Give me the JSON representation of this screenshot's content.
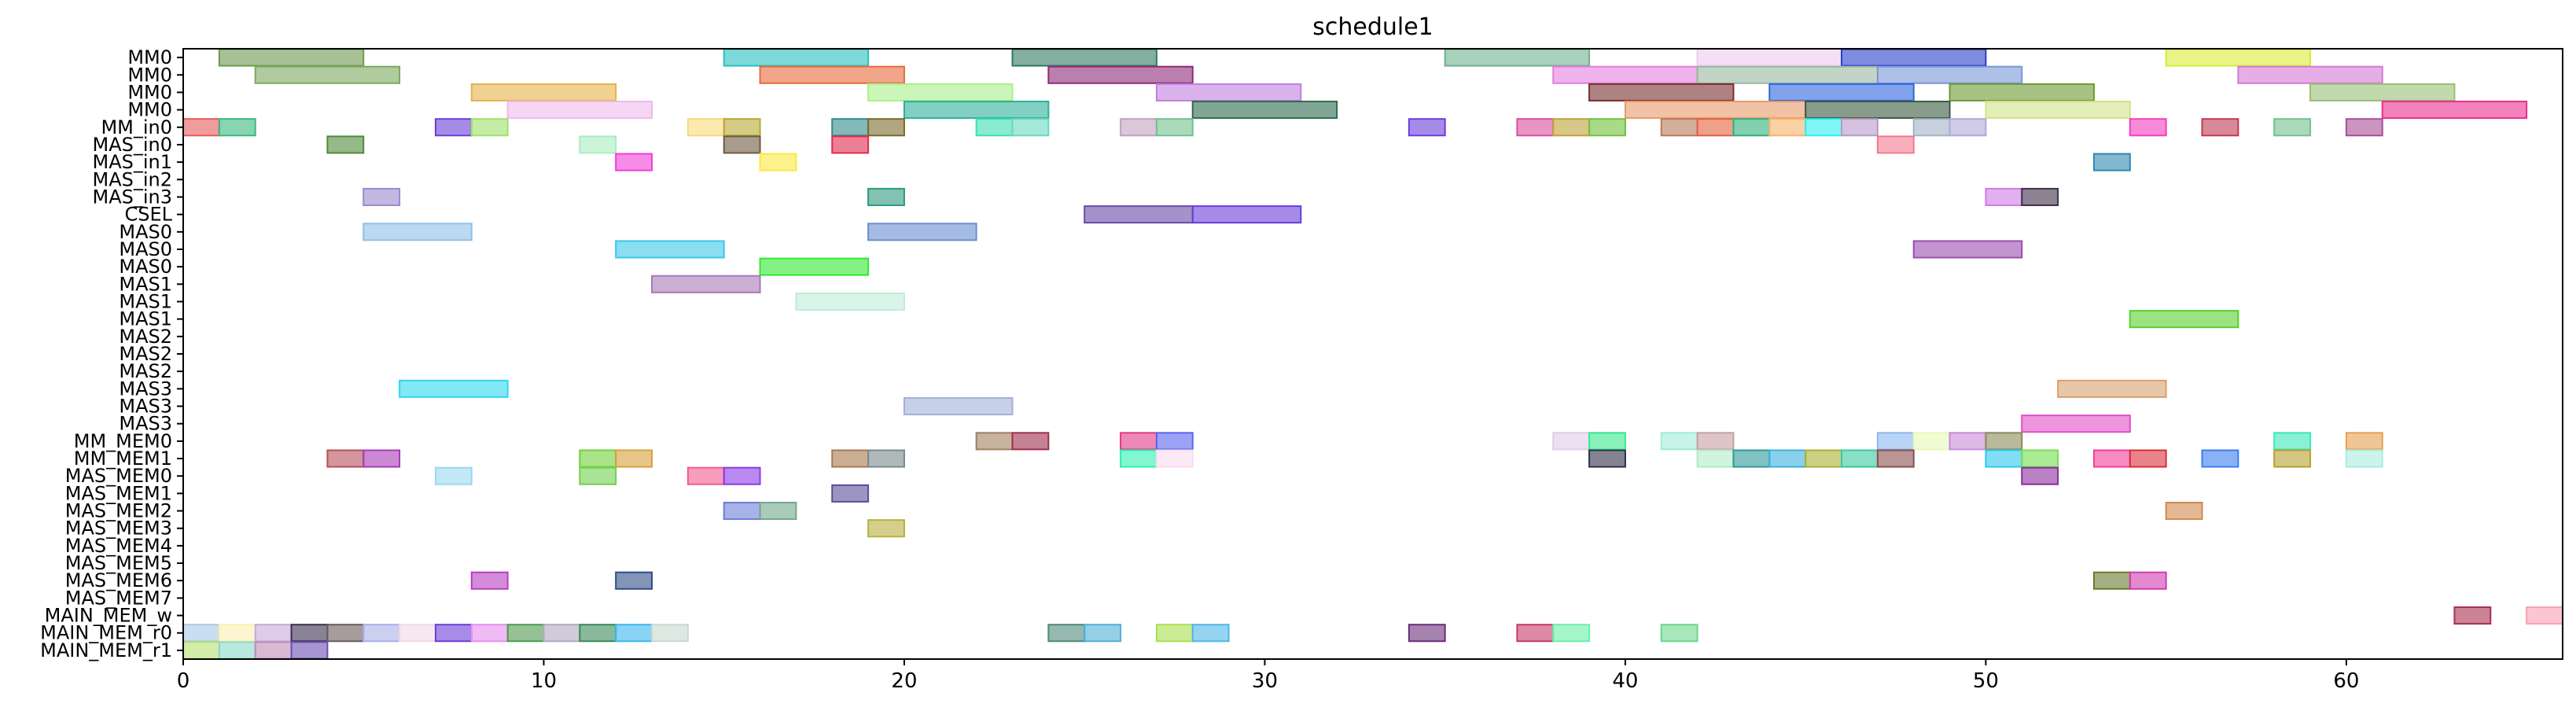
{
  "chart_data": {
    "type": "gantt",
    "title": "schedule1",
    "xlabel": "",
    "ylabel": "",
    "xlim": [
      0,
      66
    ],
    "x_ticks": [
      0,
      10,
      20,
      30,
      40,
      50,
      60
    ],
    "x_tick_labels": [
      "0",
      "10",
      "20",
      "30",
      "40",
      "50",
      "60"
    ],
    "grid": false,
    "legend": "none",
    "rows": [
      "MM0",
      "MM0",
      "MM0",
      "MM0",
      "MM_in0",
      "MAS_in0",
      "MAS_in1",
      "MAS_in2",
      "MAS_in3",
      "CSEL",
      "MAS0",
      "MAS0",
      "MAS0",
      "MAS1",
      "MAS1",
      "MAS1",
      "MAS2",
      "MAS2",
      "MAS2",
      "MAS3",
      "MAS3",
      "MAS3",
      "MM_MEM0",
      "MM_MEM1",
      "MAS_MEM0",
      "MAS_MEM1",
      "MAS_MEM2",
      "MAS_MEM3",
      "MAS_MEM4",
      "MAS_MEM5",
      "MAS_MEM6",
      "MAS_MEM7",
      "MAIN_MEM_w",
      "MAIN_MEM_r0",
      "MAIN_MEM_r1"
    ],
    "tasks": [
      {
        "row": 0,
        "start": 1,
        "end": 5,
        "color": "#6b9a4e"
      },
      {
        "row": 0,
        "start": 15,
        "end": 19,
        "color": "#27c0c0"
      },
      {
        "row": 0,
        "start": 23,
        "end": 27,
        "color": "#2f7a60"
      },
      {
        "row": 0,
        "start": 35,
        "end": 39,
        "color": "#6fb08e"
      },
      {
        "row": 0,
        "start": 42,
        "end": 46,
        "color": "#eec9f0"
      },
      {
        "row": 0,
        "start": 46,
        "end": 50,
        "color": "#2a3ec8"
      },
      {
        "row": 0,
        "start": 55,
        "end": 59,
        "color": "#d8ec36"
      },
      {
        "row": 1,
        "start": 2,
        "end": 6,
        "color": "#7ba85e"
      },
      {
        "row": 1,
        "start": 16,
        "end": 20,
        "color": "#e86a3e"
      },
      {
        "row": 1,
        "start": 24,
        "end": 28,
        "color": "#8e2a78"
      },
      {
        "row": 1,
        "start": 38,
        "end": 42,
        "color": "#e27ee0"
      },
      {
        "row": 1,
        "start": 42,
        "end": 47,
        "color": "#9ab8a0"
      },
      {
        "row": 1,
        "start": 47,
        "end": 51,
        "color": "#7a96d8"
      },
      {
        "row": 1,
        "start": 57,
        "end": 61,
        "color": "#d47ad4"
      },
      {
        "row": 2,
        "start": 8,
        "end": 12,
        "color": "#e6b24a"
      },
      {
        "row": 2,
        "start": 19,
        "end": 23,
        "color": "#aaf08a"
      },
      {
        "row": 2,
        "start": 27,
        "end": 31,
        "color": "#c27ee0"
      },
      {
        "row": 2,
        "start": 39,
        "end": 43,
        "color": "#7a2e2e"
      },
      {
        "row": 2,
        "start": 44,
        "end": 48,
        "color": "#2e66e0"
      },
      {
        "row": 2,
        "start": 49,
        "end": 53,
        "color": "#6e9a34"
      },
      {
        "row": 2,
        "start": 59,
        "end": 63,
        "color": "#98c074"
      },
      {
        "row": 3,
        "start": 9,
        "end": 13,
        "color": "#eebaee"
      },
      {
        "row": 3,
        "start": 20,
        "end": 24,
        "color": "#2eb09a"
      },
      {
        "row": 3,
        "start": 28,
        "end": 32,
        "color": "#2e6a50"
      },
      {
        "row": 3,
        "start": 40,
        "end": 45,
        "color": "#e89a6a"
      },
      {
        "row": 3,
        "start": 45,
        "end": 49,
        "color": "#3a5a3e"
      },
      {
        "row": 3,
        "start": 50,
        "end": 54,
        "color": "#d2e28a"
      },
      {
        "row": 3,
        "start": 61,
        "end": 65,
        "color": "#ea2e8e"
      },
      {
        "row": 4,
        "start": 0,
        "end": 1,
        "color": "#e85a5a"
      },
      {
        "row": 4,
        "start": 1,
        "end": 2,
        "color": "#3ab87e"
      },
      {
        "row": 4,
        "start": 7,
        "end": 8,
        "color": "#6a3ed8"
      },
      {
        "row": 4,
        "start": 8,
        "end": 9,
        "color": "#9ee068"
      },
      {
        "row": 4,
        "start": 14,
        "end": 15,
        "color": "#f8da7a"
      },
      {
        "row": 4,
        "start": 15,
        "end": 16,
        "color": "#b8a832"
      },
      {
        "row": 4,
        "start": 18,
        "end": 19,
        "color": "#2e8a8a"
      },
      {
        "row": 4,
        "start": 19,
        "end": 20,
        "color": "#7a6a2e"
      },
      {
        "row": 4,
        "start": 22,
        "end": 23,
        "color": "#3ae0b0"
      },
      {
        "row": 4,
        "start": 23,
        "end": 24,
        "color": "#6ad8c0"
      },
      {
        "row": 4,
        "start": 26,
        "end": 27,
        "color": "#c2a2c2"
      },
      {
        "row": 4,
        "start": 27,
        "end": 28,
        "color": "#72c08e"
      },
      {
        "row": 4,
        "start": 34,
        "end": 35,
        "color": "#6a3ed8"
      },
      {
        "row": 4,
        "start": 37,
        "end": 38,
        "color": "#d84ea0"
      },
      {
        "row": 4,
        "start": 38,
        "end": 39,
        "color": "#c0a23a"
      },
      {
        "row": 4,
        "start": 39,
        "end": 40,
        "color": "#72c03a"
      },
      {
        "row": 4,
        "start": 41,
        "end": 42,
        "color": "#b87a5a"
      },
      {
        "row": 4,
        "start": 42,
        "end": 43,
        "color": "#e2603e"
      },
      {
        "row": 4,
        "start": 43,
        "end": 44,
        "color": "#2eb07a"
      },
      {
        "row": 4,
        "start": 44,
        "end": 45,
        "color": "#f8b46a"
      },
      {
        "row": 4,
        "start": 45,
        "end": 46,
        "color": "#2ef0f0"
      },
      {
        "row": 4,
        "start": 46,
        "end": 47,
        "color": "#b89ac8"
      },
      {
        "row": 4,
        "start": 48,
        "end": 49,
        "color": "#a2b2c8"
      },
      {
        "row": 4,
        "start": 49,
        "end": 50,
        "color": "#b0a8d8"
      },
      {
        "row": 4,
        "start": 54,
        "end": 55,
        "color": "#f23ec0"
      },
      {
        "row": 4,
        "start": 56,
        "end": 57,
        "color": "#c03a52"
      },
      {
        "row": 4,
        "start": 58,
        "end": 59,
        "color": "#72c08e"
      },
      {
        "row": 4,
        "start": 60,
        "end": 61,
        "color": "#a84e9a"
      },
      {
        "row": 5,
        "start": 4,
        "end": 5,
        "color": "#4e8a3a"
      },
      {
        "row": 5,
        "start": 11,
        "end": 12,
        "color": "#a8ecc0"
      },
      {
        "row": 5,
        "start": 15,
        "end": 16,
        "color": "#6e5a40"
      },
      {
        "row": 5,
        "start": 18,
        "end": 19,
        "color": "#e02a4e"
      },
      {
        "row": 5,
        "start": 47,
        "end": 48,
        "color": "#f27a8e"
      },
      {
        "row": 6,
        "start": 12,
        "end": 13,
        "color": "#f23ed8"
      },
      {
        "row": 6,
        "start": 16,
        "end": 17,
        "color": "#fae840"
      },
      {
        "row": 6,
        "start": 53,
        "end": 54,
        "color": "#2e8ab0"
      },
      {
        "row": 8,
        "start": 5,
        "end": 6,
        "color": "#9a8ad0"
      },
      {
        "row": 8,
        "start": 19,
        "end": 20,
        "color": "#2e9a7e"
      },
      {
        "row": 8,
        "start": 50,
        "end": 51,
        "color": "#d27ae8"
      },
      {
        "row": 8,
        "start": 51,
        "end": 52,
        "color": "#40304a"
      },
      {
        "row": 9,
        "start": 25,
        "end": 28,
        "color": "#6a4aa8"
      },
      {
        "row": 9,
        "start": 28,
        "end": 31,
        "color": "#6a3ed8"
      },
      {
        "row": 10,
        "start": 5,
        "end": 8,
        "color": "#8ec0e8"
      },
      {
        "row": 10,
        "start": 19,
        "end": 22,
        "color": "#6a8ed0"
      },
      {
        "row": 11,
        "start": 12,
        "end": 15,
        "color": "#3ac8e8"
      },
      {
        "row": 11,
        "start": 48,
        "end": 51,
        "color": "#9a4eb0"
      },
      {
        "row": 12,
        "start": 16,
        "end": 19,
        "color": "#30ea30"
      },
      {
        "row": 13,
        "start": 13,
        "end": 16,
        "color": "#a87ab8"
      },
      {
        "row": 14,
        "start": 17,
        "end": 20,
        "color": "#c0ecd8"
      },
      {
        "row": 15,
        "start": 54,
        "end": 57,
        "color": "#58d02e"
      },
      {
        "row": 19,
        "start": 6,
        "end": 9,
        "color": "#2ed8f0"
      },
      {
        "row": 19,
        "start": 52,
        "end": 55,
        "color": "#d8a070"
      },
      {
        "row": 20,
        "start": 20,
        "end": 23,
        "color": "#a2b0d8"
      },
      {
        "row": 21,
        "start": 51,
        "end": 54,
        "color": "#e24ec8"
      },
      {
        "row": 22,
        "start": 22,
        "end": 23,
        "color": "#a08060"
      },
      {
        "row": 22,
        "start": 23,
        "end": 24,
        "color": "#a02e4e"
      },
      {
        "row": 22,
        "start": 26,
        "end": 27,
        "color": "#e03a8a"
      },
      {
        "row": 22,
        "start": 27,
        "end": 28,
        "color": "#5a66f0"
      },
      {
        "row": 22,
        "start": 38,
        "end": 39,
        "color": "#e0cce8"
      },
      {
        "row": 22,
        "start": 39,
        "end": 40,
        "color": "#3ae88e"
      },
      {
        "row": 22,
        "start": 41,
        "end": 42,
        "color": "#a0ecd8"
      },
      {
        "row": 22,
        "start": 42,
        "end": 43,
        "color": "#c8a0a0"
      },
      {
        "row": 22,
        "start": 47,
        "end": 48,
        "color": "#8ab8f0"
      },
      {
        "row": 22,
        "start": 48,
        "end": 49,
        "color": "#e8f8b8"
      },
      {
        "row": 22,
        "start": 49,
        "end": 50,
        "color": "#c88ad8"
      },
      {
        "row": 22,
        "start": 50,
        "end": 51,
        "color": "#8a8a5a"
      },
      {
        "row": 22,
        "start": 58,
        "end": 59,
        "color": "#3ae8b8"
      },
      {
        "row": 22,
        "start": 60,
        "end": 61,
        "color": "#e8a04e"
      },
      {
        "row": 23,
        "start": 4,
        "end": 5,
        "color": "#b84e5a"
      },
      {
        "row": 23,
        "start": 5,
        "end": 6,
        "color": "#a83ab8"
      },
      {
        "row": 23,
        "start": 11,
        "end": 12,
        "color": "#72d03a"
      },
      {
        "row": 23,
        "start": 12,
        "end": 13,
        "color": "#d8a03a"
      },
      {
        "row": 23,
        "start": 18,
        "end": 19,
        "color": "#a87a4e"
      },
      {
        "row": 23,
        "start": 19,
        "end": 20,
        "color": "#7a8a8a"
      },
      {
        "row": 23,
        "start": 26,
        "end": 27,
        "color": "#2ef0b0"
      },
      {
        "row": 23,
        "start": 27,
        "end": 28,
        "color": "#f8dcf0"
      },
      {
        "row": 23,
        "start": 39,
        "end": 40,
        "color": "#30304a"
      },
      {
        "row": 23,
        "start": 42,
        "end": 43,
        "color": "#b0ecc8"
      },
      {
        "row": 23,
        "start": 43,
        "end": 44,
        "color": "#2e9a9a"
      },
      {
        "row": 23,
        "start": 44,
        "end": 45,
        "color": "#3ab0e0"
      },
      {
        "row": 23,
        "start": 45,
        "end": 46,
        "color": "#a8b030"
      },
      {
        "row": 23,
        "start": 46,
        "end": 47,
        "color": "#3ac8a0"
      },
      {
        "row": 23,
        "start": 47,
        "end": 48,
        "color": "#8a4e4e"
      },
      {
        "row": 23,
        "start": 50,
        "end": 51,
        "color": "#2ec8f0"
      },
      {
        "row": 23,
        "start": 51,
        "end": 52,
        "color": "#72e04e"
      },
      {
        "row": 23,
        "start": 53,
        "end": 54,
        "color": "#f23e9a"
      },
      {
        "row": 23,
        "start": 54,
        "end": 55,
        "color": "#d8303a"
      },
      {
        "row": 23,
        "start": 56,
        "end": 57,
        "color": "#3a7ef0"
      },
      {
        "row": 23,
        "start": 58,
        "end": 59,
        "color": "#b8a030"
      },
      {
        "row": 23,
        "start": 60,
        "end": 61,
        "color": "#a8ece0"
      },
      {
        "row": 24,
        "start": 7,
        "end": 8,
        "color": "#9ad8f0"
      },
      {
        "row": 24,
        "start": 11,
        "end": 12,
        "color": "#72d04e"
      },
      {
        "row": 24,
        "start": 14,
        "end": 15,
        "color": "#f25a8e"
      },
      {
        "row": 24,
        "start": 15,
        "end": 16,
        "color": "#8a3ae8"
      },
      {
        "row": 24,
        "start": 51,
        "end": 52,
        "color": "#8a2e9a"
      },
      {
        "row": 25,
        "start": 18,
        "end": 19,
        "color": "#5a4e9a"
      },
      {
        "row": 26,
        "start": 15,
        "end": 16,
        "color": "#6a7ed8"
      },
      {
        "row": 26,
        "start": 16,
        "end": 17,
        "color": "#72a88a"
      },
      {
        "row": 26,
        "start": 55,
        "end": 56,
        "color": "#d08a4e"
      },
      {
        "row": 27,
        "start": 19,
        "end": 20,
        "color": "#b8b03e"
      },
      {
        "row": 30,
        "start": 8,
        "end": 9,
        "color": "#b83ec0"
      },
      {
        "row": 30,
        "start": 12,
        "end": 13,
        "color": "#2e4e8a"
      },
      {
        "row": 30,
        "start": 53,
        "end": 54,
        "color": "#6a7a2e"
      },
      {
        "row": 30,
        "start": 54,
        "end": 55,
        "color": "#d03ab0"
      },
      {
        "row": 32,
        "start": 63,
        "end": 64,
        "color": "#a8304e"
      },
      {
        "row": 32,
        "start": 65,
        "end": 66,
        "color": "#f8a0b0"
      },
      {
        "row": 33,
        "start": 0,
        "end": 1,
        "color": "#a8c8e8"
      },
      {
        "row": 33,
        "start": 1,
        "end": 2,
        "color": "#f8f0b0"
      },
      {
        "row": 33,
        "start": 2,
        "end": 3,
        "color": "#c8a8d8"
      },
      {
        "row": 33,
        "start": 3,
        "end": 4,
        "color": "#3a2e4e"
      },
      {
        "row": 33,
        "start": 4,
        "end": 5,
        "color": "#6a5a5a"
      },
      {
        "row": 33,
        "start": 5,
        "end": 6,
        "color": "#a8b0e8"
      },
      {
        "row": 33,
        "start": 6,
        "end": 7,
        "color": "#f0d8e8"
      },
      {
        "row": 33,
        "start": 7,
        "end": 8,
        "color": "#6a3ed8"
      },
      {
        "row": 33,
        "start": 8,
        "end": 9,
        "color": "#e88ef0"
      },
      {
        "row": 33,
        "start": 9,
        "end": 10,
        "color": "#4e9a4e"
      },
      {
        "row": 33,
        "start": 10,
        "end": 11,
        "color": "#b0a8c0"
      },
      {
        "row": 33,
        "start": 11,
        "end": 12,
        "color": "#3a8a5a"
      },
      {
        "row": 33,
        "start": 12,
        "end": 13,
        "color": "#3ab8f0"
      },
      {
        "row": 33,
        "start": 13,
        "end": 14,
        "color": "#c8d8d0"
      },
      {
        "row": 33,
        "start": 24,
        "end": 25,
        "color": "#4e8a7a"
      },
      {
        "row": 33,
        "start": 25,
        "end": 26,
        "color": "#4eb0d8"
      },
      {
        "row": 33,
        "start": 27,
        "end": 28,
        "color": "#a8e04e"
      },
      {
        "row": 33,
        "start": 28,
        "end": 29,
        "color": "#4eb8e8"
      },
      {
        "row": 33,
        "start": 34,
        "end": 35,
        "color": "#6a2e7a"
      },
      {
        "row": 33,
        "start": 37,
        "end": 38,
        "color": "#c83a6a"
      },
      {
        "row": 33,
        "start": 38,
        "end": 39,
        "color": "#6af0a8"
      },
      {
        "row": 33,
        "start": 41,
        "end": 42,
        "color": "#6ad88a"
      },
      {
        "row": 34,
        "start": 0,
        "end": 1,
        "color": "#b8e070"
      },
      {
        "row": 34,
        "start": 1,
        "end": 2,
        "color": "#8ad8c8"
      },
      {
        "row": 34,
        "start": 2,
        "end": 3,
        "color": "#c08ab8"
      },
      {
        "row": 34,
        "start": 3,
        "end": 4,
        "color": "#6a4eb0"
      }
    ]
  }
}
